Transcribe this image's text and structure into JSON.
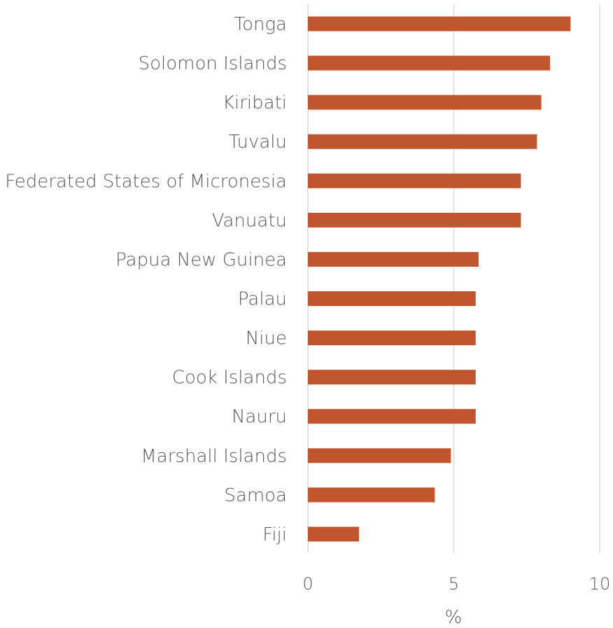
{
  "chart_data": {
    "type": "bar",
    "orientation": "horizontal",
    "categories": [
      "Tonga",
      "Solomon Islands",
      "Kiribati",
      "Tuvalu",
      "Federated States of Micronesia",
      "Vanuatu",
      "Papua New Guinea",
      "Palau",
      "Niue",
      "Cook Islands",
      "Nauru",
      "Marshall Islands",
      "Samoa",
      "Fiji"
    ],
    "values": [
      9.0,
      8.3,
      8.0,
      7.85,
      7.3,
      7.3,
      5.85,
      5.75,
      5.75,
      5.75,
      5.75,
      4.9,
      4.35,
      1.75
    ],
    "xlabel": "%",
    "xlim": [
      0,
      10
    ],
    "xticks": [
      "0",
      "5",
      "10"
    ],
    "grid": "vertical",
    "legend": "none",
    "bar_color": "#C0552E",
    "grid_color": "#D9D9D9"
  }
}
